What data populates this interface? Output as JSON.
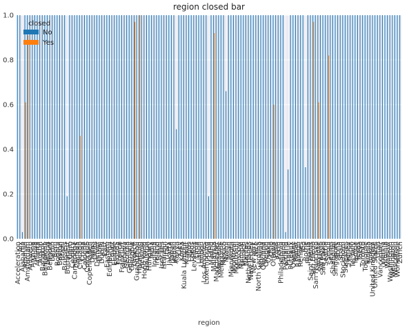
{
  "chart_data": {
    "type": "bar",
    "title": "region closed bar",
    "xlabel": "region",
    "ylabel": "",
    "ylim": [
      0,
      1.0
    ],
    "yticks": [
      "0.0",
      "0.2",
      "0.4",
      "0.6",
      "0.8",
      "1.0"
    ],
    "grid": true,
    "legend": {
      "title": "closed",
      "placement": "top-left"
    },
    "colors": {
      "No": "#1f77b4",
      "Yes": "#ff7f0e",
      "plot_background": "#eaeaf2",
      "grid": "#ffffff"
    },
    "categories": [
      "Acceleration",
      "Aix",
      "Alabama",
      "Amman",
      "Amsterdam",
      "Antwerp",
      "Arizona",
      "Aruba",
      "Atlanta",
      "Austin",
      "Bangkok",
      "Barcelona",
      "Beijing",
      "Belmont",
      "Berlin",
      "Bern",
      "Bogota",
      "Boston",
      "Brazil",
      "Brussels",
      "Budapest",
      "Cairo",
      "Calgary",
      "Cambridge",
      "Canada",
      "Chicago",
      "China",
      "Cologne",
      "Colorado",
      "Copenhagen",
      "Dallas",
      "Delhi",
      "Denver",
      "Dubai",
      "Dublin",
      "East",
      "Eastern",
      "Edinburgh",
      "Egypt",
      "Europe",
      "Florida",
      "France",
      "Frankfurt",
      "Geneva",
      "Georgia",
      "Germany",
      "Glasgow",
      "Greece",
      "Guangzhou",
      "Hamburg",
      "Helsinki",
      "Hong Kong",
      "Houston",
      "Hungary",
      "India",
      "Indiana",
      "Ireland",
      "Israel",
      "Issy Les",
      "Istanbul",
      "Italy",
      "Jakarta",
      "Japan",
      "Jordan",
      "Kenya",
      "Kiev",
      "Korea",
      "Kuala Lumpur",
      "Kuwait",
      "Lagos",
      "Leeds",
      "Levallois",
      "Lima",
      "Lisbon",
      "London",
      "Los Angeles",
      "Luxembourg",
      "Lyon",
      "Madrid",
      "Malaysia",
      "Manchester",
      "Marseille",
      "Melbourne",
      "Mexico",
      "Miami",
      "Milan",
      "Minnesota",
      "Montreal",
      "Montreuil",
      "Moscow",
      "Mumbai",
      "Munich",
      "Nantes",
      "Netherlands",
      "New Jersey",
      "New York",
      "Nice",
      "North Carolina",
      "Norway",
      "Oakland",
      "Oregon",
      "Osaka",
      "Oslo",
      "Ottawa",
      "Paris",
      "Perth",
      "Philadelphia",
      "Poland",
      "Portland",
      "Prague",
      "Puteaux",
      "Quebec",
      "Rabat",
      "Raleigh",
      "Rennes",
      "Rio",
      "Rome",
      "Russia",
      "Saint Denis",
      "San Diego",
      "San Francisco",
      "San Jose",
      "Santiago",
      "Sao Paulo",
      "Seattle",
      "Seoul",
      "Sevres",
      "Shanghai",
      "Singapore",
      "Sofia",
      "Spain",
      "Stockholm",
      "Suresnes",
      "Sydney",
      "Taipei",
      "Tel Aviv",
      "Tempe",
      "Texas",
      "Tokyo",
      "Toronto",
      "Toulouse",
      "Tunisia",
      "Turkey",
      "United Kingdom",
      "United States",
      "Utah",
      "Vancouver",
      "Vienna",
      "Virginia",
      "Warsaw",
      "Washington",
      "Wellington",
      "Wisconsin",
      "Worldwide",
      "Zurich"
    ],
    "series": [
      {
        "name": "No",
        "values": [
          1,
          1,
          0.03,
          1,
          1,
          1,
          1,
          1,
          1,
          1,
          1,
          1,
          1,
          1,
          1,
          1,
          1,
          1,
          1,
          1,
          0.19,
          1,
          1,
          1,
          1,
          1,
          1,
          1,
          1,
          1,
          1,
          1,
          1,
          1,
          1,
          1,
          1,
          1,
          1,
          1,
          1,
          1,
          1,
          1,
          1,
          1,
          1,
          1,
          1,
          1,
          1,
          1,
          1,
          1,
          1,
          1,
          1,
          1,
          1,
          1,
          1,
          1,
          1,
          1,
          0.49,
          1,
          1,
          1,
          1,
          1,
          1,
          1,
          1,
          1,
          1,
          1,
          1,
          0.19,
          1,
          1,
          1,
          1,
          1,
          1,
          0.66,
          1,
          1,
          1,
          1,
          1,
          1,
          1,
          1,
          1,
          1,
          1,
          1,
          1,
          1,
          1,
          1,
          1,
          1,
          1,
          1,
          1,
          1,
          1,
          0.03,
          0.31,
          1,
          1,
          1,
          1,
          1,
          1,
          0.32,
          1,
          1,
          1,
          1,
          1,
          1,
          1,
          1,
          1,
          1,
          1,
          1,
          1,
          1,
          1,
          1,
          1,
          1,
          1,
          1,
          1,
          1,
          1,
          1,
          1,
          1,
          1,
          1,
          1,
          1,
          1,
          1,
          1,
          1,
          1,
          1,
          1,
          1
        ]
      },
      {
        "name": "Yes",
        "values": [
          0,
          0,
          0,
          0.61,
          0.91,
          0,
          0,
          0,
          0,
          0,
          0,
          0,
          0,
          0,
          0,
          0,
          0,
          0,
          0,
          0,
          0,
          0,
          0,
          0,
          0,
          0.46,
          0,
          0,
          0,
          0,
          0,
          0,
          0,
          0,
          0,
          0,
          0,
          0,
          0,
          0,
          0,
          0,
          0,
          0,
          0,
          0,
          0,
          0.97,
          0,
          1.0,
          0,
          0,
          0,
          0,
          0,
          0,
          0,
          0,
          0,
          0,
          0,
          0,
          0,
          0,
          0,
          0,
          0,
          0,
          0,
          0,
          0,
          0,
          0,
          0,
          0,
          0,
          0,
          0,
          0,
          0.92,
          0,
          0,
          0,
          0,
          0,
          0,
          0,
          0,
          0,
          0,
          0,
          0,
          0,
          0,
          0,
          0,
          0,
          0,
          0,
          0,
          0,
          0,
          0,
          0.6,
          0,
          0,
          0,
          0,
          0,
          0,
          0,
          0,
          0,
          0,
          0,
          0,
          0,
          0,
          0,
          0.97,
          0,
          0.61,
          0,
          0,
          0,
          0.82,
          0,
          0,
          0,
          0,
          0,
          0,
          0,
          0,
          0,
          0,
          0,
          0,
          0,
          0,
          0,
          0,
          0,
          0,
          0,
          0,
          0,
          0,
          0,
          0,
          0,
          0,
          0,
          0,
          0
        ]
      }
    ]
  }
}
